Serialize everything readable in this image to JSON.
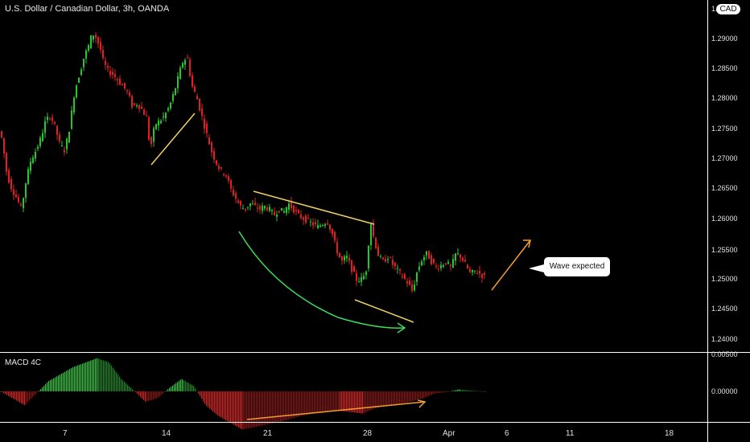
{
  "header": {
    "title": "U.S. Dollar / Canadian Dollar, 3h, OANDA",
    "currency_badge": "CAD",
    "top_price_label": "1."
  },
  "indicator": {
    "name": "MACD 4C",
    "zero_label": "0.00000",
    "top_label": "0.00500"
  },
  "annotation": {
    "callout_text": "Wave expected"
  },
  "colors": {
    "up": "#26c72b",
    "down": "#e02020",
    "trendline": "#f0d060",
    "arc": "#3ddc5a",
    "arrow": "#f0a030",
    "divider": "#ffffff"
  },
  "chart_data": {
    "type": "candlestick",
    "symbol": "USDCAD",
    "timeframe": "3h",
    "ylim": [
      1.2365,
      1.2943
    ],
    "y_ticks": [
      "1.29000",
      "1.28500",
      "1.28000",
      "1.27500",
      "1.27000",
      "1.26500",
      "1.26000",
      "1.25500",
      "1.25000",
      "1.24500",
      "1.24000"
    ],
    "x_ticks": [
      "7",
      "14",
      "21",
      "28",
      "Apr",
      "6",
      "11",
      "18"
    ],
    "price_path": [
      [
        0,
        1.2735
      ],
      [
        4,
        1.272
      ],
      [
        10,
        1.266
      ],
      [
        16,
        1.2635
      ],
      [
        22,
        1.262
      ],
      [
        28,
        1.26
      ],
      [
        34,
        1.265
      ],
      [
        40,
        1.2685
      ],
      [
        46,
        1.27
      ],
      [
        52,
        1.272
      ],
      [
        58,
        1.275
      ],
      [
        64,
        1.276
      ],
      [
        70,
        1.274
      ],
      [
        76,
        1.271
      ],
      [
        82,
        1.27
      ],
      [
        88,
        1.274
      ],
      [
        94,
        1.28
      ],
      [
        100,
        1.283
      ],
      [
        106,
        1.286
      ],
      [
        112,
        1.288
      ],
      [
        116,
        1.29
      ],
      [
        120,
        1.2895
      ],
      [
        126,
        1.2875
      ],
      [
        130,
        1.285
      ],
      [
        136,
        1.2835
      ],
      [
        142,
        1.283
      ],
      [
        148,
        1.282
      ],
      [
        154,
        1.281
      ],
      [
        160,
        1.28
      ],
      [
        166,
        1.2775
      ],
      [
        172,
        1.278
      ],
      [
        178,
        1.277
      ],
      [
        184,
        1.2755
      ],
      [
        188,
        1.27
      ],
      [
        194,
        1.2745
      ],
      [
        200,
        1.275
      ],
      [
        206,
        1.276
      ],
      [
        212,
        1.2775
      ],
      [
        218,
        1.28
      ],
      [
        224,
        1.283
      ],
      [
        228,
        1.285
      ],
      [
        234,
        1.286
      ],
      [
        240,
        1.281
      ],
      [
        246,
        1.279
      ],
      [
        252,
        1.276
      ],
      [
        258,
        1.273
      ],
      [
        264,
        1.27
      ],
      [
        270,
        1.268
      ],
      [
        276,
        1.2665
      ],
      [
        282,
        1.266
      ],
      [
        288,
        1.2635
      ],
      [
        294,
        1.262
      ],
      [
        300,
        1.2605
      ],
      [
        306,
        1.26
      ],
      [
        312,
        1.261
      ],
      [
        318,
        1.2605
      ],
      [
        324,
        1.26
      ],
      [
        330,
        1.2605
      ],
      [
        336,
        1.26
      ],
      [
        342,
        1.259
      ],
      [
        348,
        1.26
      ],
      [
        354,
        1.2595
      ],
      [
        360,
        1.261
      ],
      [
        366,
        1.26
      ],
      [
        372,
        1.259
      ],
      [
        378,
        1.2585
      ],
      [
        384,
        1.258
      ],
      [
        390,
        1.2575
      ],
      [
        396,
        1.257
      ],
      [
        402,
        1.2575
      ],
      [
        408,
        1.258
      ],
      [
        414,
        1.256
      ],
      [
        420,
        1.253
      ],
      [
        426,
        1.251
      ],
      [
        432,
        1.252
      ],
      [
        438,
        1.25
      ],
      [
        444,
        1.248
      ],
      [
        450,
        1.248
      ],
      [
        456,
        1.249
      ],
      [
        462,
        1.258
      ],
      [
        466,
        1.255
      ],
      [
        472,
        1.252
      ],
      [
        478,
        1.251
      ],
      [
        484,
        1.252
      ],
      [
        490,
        1.2505
      ],
      [
        496,
        1.2495
      ],
      [
        502,
        1.2485
      ],
      [
        508,
        1.2475
      ],
      [
        514,
        1.246
      ],
      [
        520,
        1.2495
      ],
      [
        526,
        1.2515
      ],
      [
        532,
        1.2525
      ],
      [
        538,
        1.251
      ],
      [
        544,
        1.25
      ],
      [
        550,
        1.2505
      ],
      [
        556,
        1.251
      ],
      [
        562,
        1.25
      ],
      [
        568,
        1.2525
      ],
      [
        574,
        1.252
      ],
      [
        580,
        1.2505
      ],
      [
        586,
        1.249
      ],
      [
        592,
        1.2495
      ],
      [
        598,
        1.249
      ],
      [
        603,
        1.2485
      ]
    ],
    "macd_path": [
      [
        0,
        0.0
      ],
      [
        30,
        -0.002
      ],
      [
        60,
        0.0015
      ],
      [
        90,
        0.0035
      ],
      [
        120,
        0.0048
      ],
      [
        135,
        0.0042
      ],
      [
        150,
        0.0018
      ],
      [
        165,
        0.0002
      ],
      [
        180,
        -0.0015
      ],
      [
        195,
        -0.001
      ],
      [
        210,
        0.0005
      ],
      [
        225,
        0.0018
      ],
      [
        240,
        0.0008
      ],
      [
        255,
        -0.002
      ],
      [
        270,
        -0.0035
      ],
      [
        285,
        -0.0045
      ],
      [
        300,
        -0.0055
      ],
      [
        315,
        -0.0052
      ],
      [
        330,
        -0.0048
      ],
      [
        345,
        -0.0045
      ],
      [
        360,
        -0.004
      ],
      [
        375,
        -0.0035
      ],
      [
        390,
        -0.0032
      ],
      [
        405,
        -0.003
      ],
      [
        420,
        -0.0028
      ],
      [
        435,
        -0.003
      ],
      [
        450,
        -0.0032
      ],
      [
        465,
        -0.0025
      ],
      [
        480,
        -0.002
      ],
      [
        495,
        -0.0018
      ],
      [
        510,
        -0.0015
      ],
      [
        525,
        -0.001
      ],
      [
        540,
        -0.0003
      ],
      [
        555,
        -0.0001
      ],
      [
        570,
        0.0003
      ],
      [
        585,
        0.0001
      ],
      [
        600,
        0.0
      ]
    ]
  }
}
